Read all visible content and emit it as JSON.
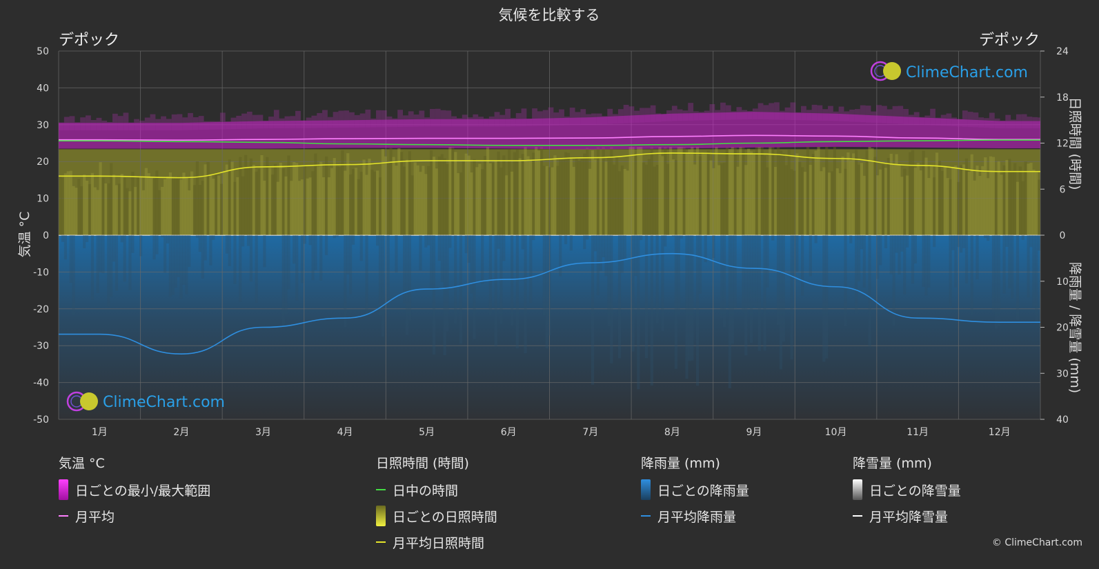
{
  "chart_data": {
    "type": "line",
    "title": "気候を比較する",
    "location_left": "デポック",
    "location_right": "デポック",
    "categories": [
      "1月",
      "2月",
      "3月",
      "4月",
      "5月",
      "6月",
      "7月",
      "8月",
      "9月",
      "10月",
      "11月",
      "12月"
    ],
    "y_left": {
      "label": "気温 °C",
      "ylim": [
        -50,
        50
      ],
      "ticks": [
        50,
        40,
        30,
        20,
        10,
        0,
        -10,
        -20,
        -30,
        -40,
        -50
      ]
    },
    "y_right_top": {
      "label": "日照時間 (時間)",
      "ylim": [
        0,
        24
      ],
      "ticks": [
        24,
        18,
        12,
        6,
        0
      ]
    },
    "y_right_bottom": {
      "label": "降雨量 / 降雪量 (mm)",
      "ylim": [
        0,
        40
      ],
      "ticks": [
        0,
        10,
        20,
        30,
        40
      ]
    },
    "grid": true,
    "series": [
      {
        "name": "月平均",
        "axis": "temperature_c",
        "color": "#ff80ff",
        "values": [
          25.9,
          25.8,
          26.0,
          26.2,
          26.3,
          26.3,
          26.4,
          26.8,
          27.1,
          26.9,
          26.4,
          26.0
        ]
      },
      {
        "name": "日中の時間",
        "axis": "hours",
        "color": "#44dd44",
        "values": [
          12.3,
          12.2,
          12.1,
          11.9,
          11.8,
          11.7,
          11.7,
          11.8,
          12.0,
          12.2,
          12.3,
          12.4
        ]
      },
      {
        "name": "月平均日照時間",
        "axis": "hours",
        "color": "#e6e62a",
        "values": [
          7.7,
          7.5,
          8.9,
          9.2,
          9.7,
          9.7,
          10.1,
          10.7,
          10.6,
          10.0,
          9.1,
          8.3
        ]
      },
      {
        "name": "月平均降雨量",
        "axis": "precip_mm",
        "color": "#2f8fe0",
        "values": [
          21.5,
          25.8,
          20.0,
          18.0,
          11.7,
          9.6,
          6.0,
          4.0,
          7.2,
          11.2,
          18.0,
          18.9
        ]
      }
    ],
    "temp_band": {
      "name": "日ごとの最小/最大範囲",
      "min": [
        23.5,
        23.5,
        23.5,
        23.7,
        23.7,
        23.5,
        23.3,
        23.5,
        23.8,
        24.0,
        23.8,
        23.6
      ],
      "max": [
        30.5,
        30.5,
        31.0,
        31.2,
        31.5,
        31.5,
        32.0,
        33.0,
        33.5,
        33.0,
        32.0,
        31.0
      ]
    }
  },
  "legend": {
    "temp_header": "気温 °C",
    "temp_range": "日ごとの最小/最大範囲",
    "temp_avg": "月平均",
    "sun_header": "日照時間 (時間)",
    "daylight": "日中の時間",
    "daily_sun": "日ごとの日照時間",
    "monthly_sun": "月平均日照時間",
    "rain_header": "降雨量 (mm)",
    "daily_rain": "日ごとの降雨量",
    "monthly_rain": "月平均降雨量",
    "snow_header": "降雪量 (mm)",
    "daily_snow": "日ごとの降雪量",
    "monthly_snow": "月平均降雪量"
  },
  "watermark": "ClimeChart.com",
  "copyright": "© ClimeChart.com",
  "colors": {
    "background": "#2d2d2d",
    "temp_band": "#d020d0",
    "sun_fill": "#8a8a2a",
    "rain_fill": "#1e5f90",
    "watermark": "#2aa0e8"
  }
}
